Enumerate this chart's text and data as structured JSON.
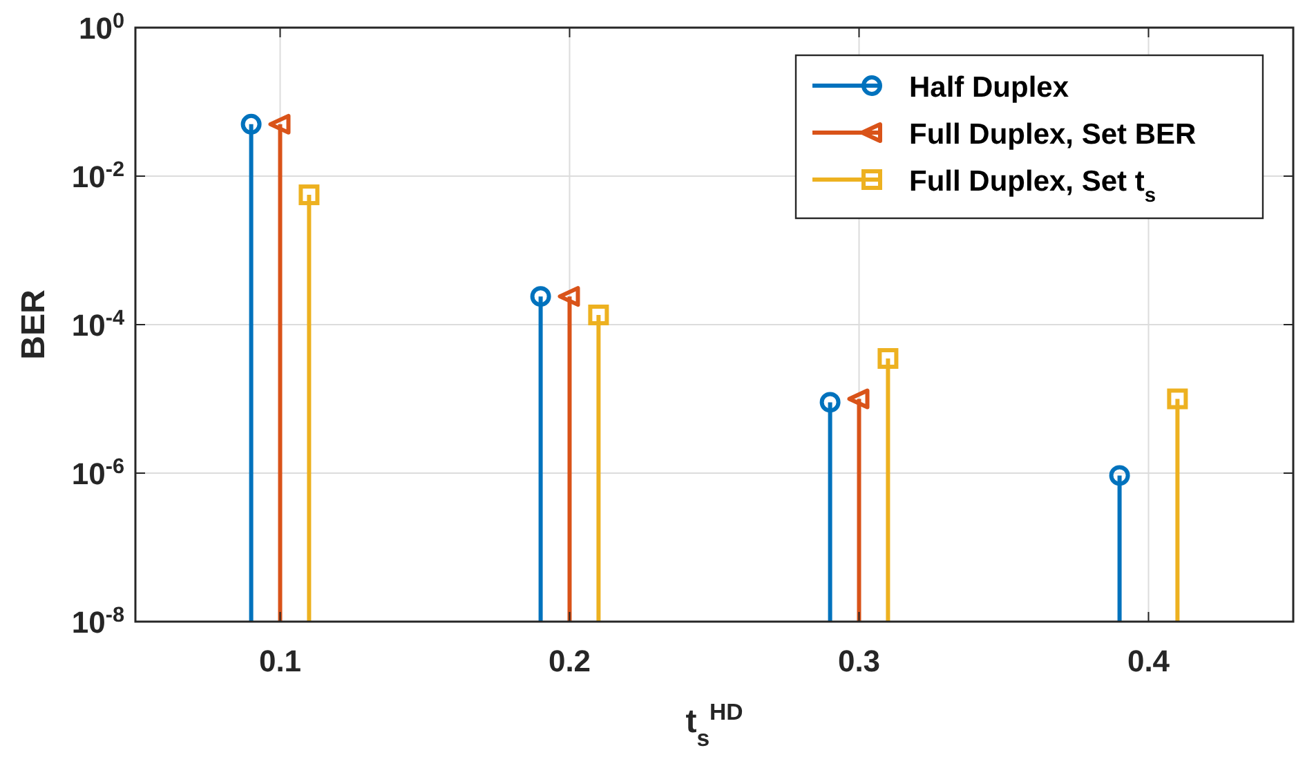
{
  "chart_data": {
    "type": "lollipop",
    "xlabel": "t$_{s}$$^{HD}$",
    "ylabel": "BER",
    "log": "y",
    "grid": true,
    "legend": "top right",
    "xlim": [
      0.05,
      0.45
    ],
    "xticks": [
      0.1,
      0.2,
      0.3,
      0.4
    ],
    "ylim": [
      1e-08,
      1
    ],
    "yticks": [
      {
        "value": 1e-08,
        "label": "10$^{-8}$"
      },
      {
        "value": 1e-06,
        "label": "10$^{-6}$"
      },
      {
        "value": 0.0001,
        "label": "10$^{-4}$"
      },
      {
        "value": 0.01,
        "label": "10$^{-2}$"
      },
      {
        "value": 1,
        "label": "10$^{0}$"
      }
    ],
    "series": [
      {
        "name": "Half Duplex",
        "color": "#0072bd",
        "marker": "circle",
        "x": [
          0.09,
          0.19,
          0.29,
          0.39
        ],
        "values": [
          0.05,
          0.00024,
          9e-06,
          9.3e-07
        ]
      },
      {
        "name": "Full Duplex, Set BER",
        "color": "#d95319",
        "marker": "triangle",
        "x": [
          0.1,
          0.2,
          0.3
        ],
        "values": [
          0.05,
          0.00024,
          1e-05
        ]
      },
      {
        "name": "Full Duplex, Set t$_{s}$",
        "color": "#edb120",
        "marker": "square",
        "x": [
          0.11,
          0.21,
          0.31,
          0.41
        ],
        "values": [
          0.0056,
          0.000135,
          3.5e-05,
          1e-05
        ]
      }
    ]
  }
}
